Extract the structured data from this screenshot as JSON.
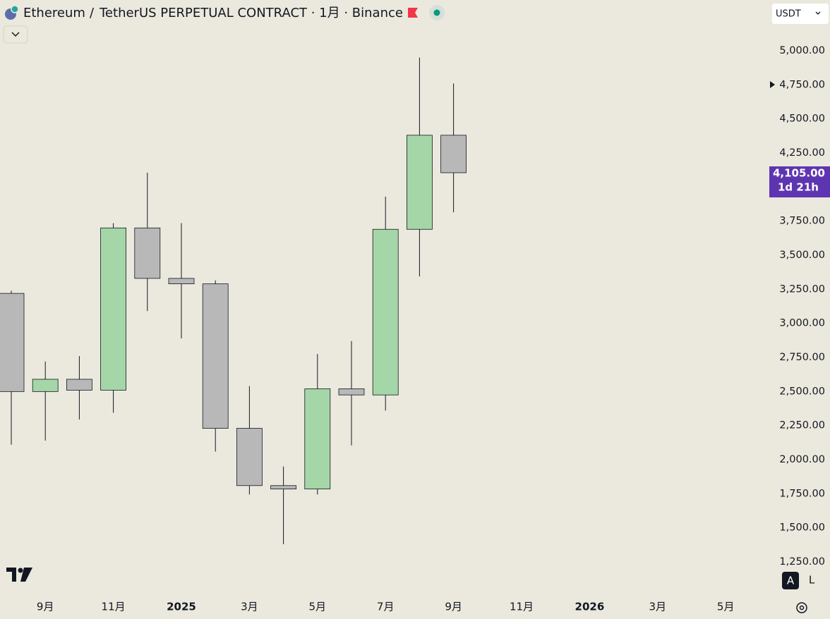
{
  "chart_data": {
    "type": "candlestick",
    "symbol": "Ethereum",
    "separator": "/",
    "title": "TetherUS PERPETUAL CONTRACT · 1月 · Binance",
    "currency": "USDT",
    "categories": [
      null,
      "9月",
      null,
      "11月",
      null,
      "2025",
      null,
      "3月",
      null,
      "5月",
      null,
      "7月",
      null,
      "9月",
      null,
      "11月",
      null,
      "2026",
      null,
      "3月",
      null,
      "5月",
      null
    ],
    "open": [
      3220,
      2500,
      2590,
      2510,
      3700,
      3330,
      3290,
      2230,
      1810,
      1785,
      2520,
      2475,
      3690,
      4380,
      null,
      null,
      null,
      null,
      null,
      null,
      null,
      null,
      null
    ],
    "high": [
      3240,
      2720,
      2760,
      3735,
      4105,
      3735,
      3315,
      2540,
      1950,
      2775,
      2870,
      3930,
      4950,
      4760,
      null,
      null,
      null,
      null,
      null,
      null,
      null,
      null,
      null
    ],
    "low": [
      2110,
      2140,
      2295,
      2345,
      3090,
      2890,
      2060,
      1745,
      1380,
      1745,
      2105,
      2360,
      3345,
      3815,
      null,
      null,
      null,
      null,
      null,
      null,
      null,
      null,
      null
    ],
    "close": [
      2500,
      2590,
      2510,
      3700,
      3330,
      3290,
      2230,
      1810,
      1785,
      2520,
      2475,
      3690,
      4380,
      4105,
      null,
      null,
      null,
      null,
      null,
      null,
      null,
      null,
      null
    ],
    "up_color": "#a5d6a7",
    "down_color": "#b8b8b8",
    "ylim": [
      1028,
      5372
    ],
    "yticks": [
      {
        "value": 1250,
        "label": "1,250.00"
      },
      {
        "value": 1500,
        "label": "1,500.00"
      },
      {
        "value": 1750,
        "label": "1,750.00"
      },
      {
        "value": 2000,
        "label": "2,000.00"
      },
      {
        "value": 2250,
        "label": "2,250.00"
      },
      {
        "value": 2500,
        "label": "2,500.00"
      },
      {
        "value": 2750,
        "label": "2,750.00"
      },
      {
        "value": 3000,
        "label": "3,000.00"
      },
      {
        "value": 3250,
        "label": "3,250.00"
      },
      {
        "value": 3500,
        "label": "3,500.00"
      },
      {
        "value": 3750,
        "label": "3,750.00"
      },
      {
        "value": 4250,
        "label": "4,250.00"
      },
      {
        "value": 4500,
        "label": "4,500.00"
      },
      {
        "value": 4750,
        "label": "4,750.00"
      },
      {
        "value": 5000,
        "label": "5,000.00"
      }
    ],
    "last_price": {
      "value": 4105,
      "label": "4,105.00"
    },
    "countdown": "1d 21h",
    "last_price_color": "#5e35b1",
    "auto_button": "A",
    "log_button": "L"
  }
}
